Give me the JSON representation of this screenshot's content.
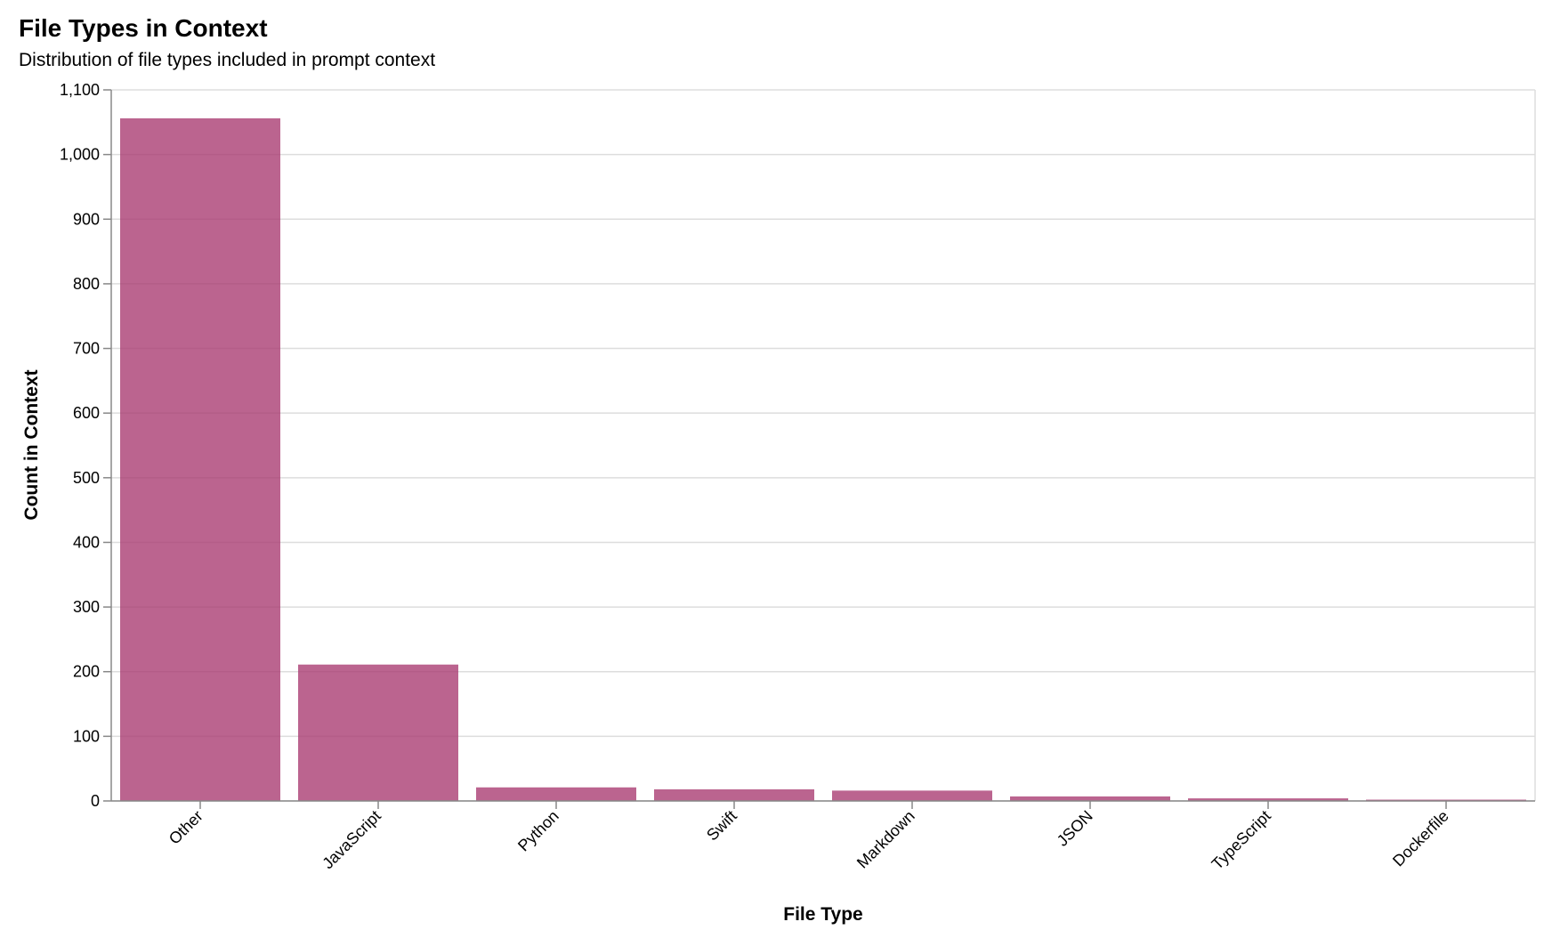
{
  "header": {
    "title": "File Types in Context",
    "subtitle": "Distribution of file types included in prompt context"
  },
  "colors": {
    "bar": "#a8386f",
    "bar_opacity": 0.78,
    "grid": "#dddddd",
    "axis": "#888888"
  },
  "chart_data": {
    "type": "bar",
    "title": "File Types in Context",
    "subtitle": "Distribution of file types included in prompt context",
    "xlabel": "File Type",
    "ylabel": "Count in Context",
    "categories": [
      "Other",
      "JavaScript",
      "Python",
      "Swift",
      "Markdown",
      "JSON",
      "TypeScript",
      "Dockerfile"
    ],
    "values": [
      1056,
      211,
      21,
      18,
      16,
      7,
      4,
      2
    ],
    "ylim": [
      0,
      1100
    ],
    "yticks": [
      0,
      100,
      200,
      300,
      400,
      500,
      600,
      700,
      800,
      900,
      1000,
      1100
    ],
    "ytick_labels": [
      "0",
      "100",
      "200",
      "300",
      "400",
      "500",
      "600",
      "700",
      "800",
      "900",
      "1,000",
      "1,100"
    ],
    "grid": true,
    "legend": null
  }
}
